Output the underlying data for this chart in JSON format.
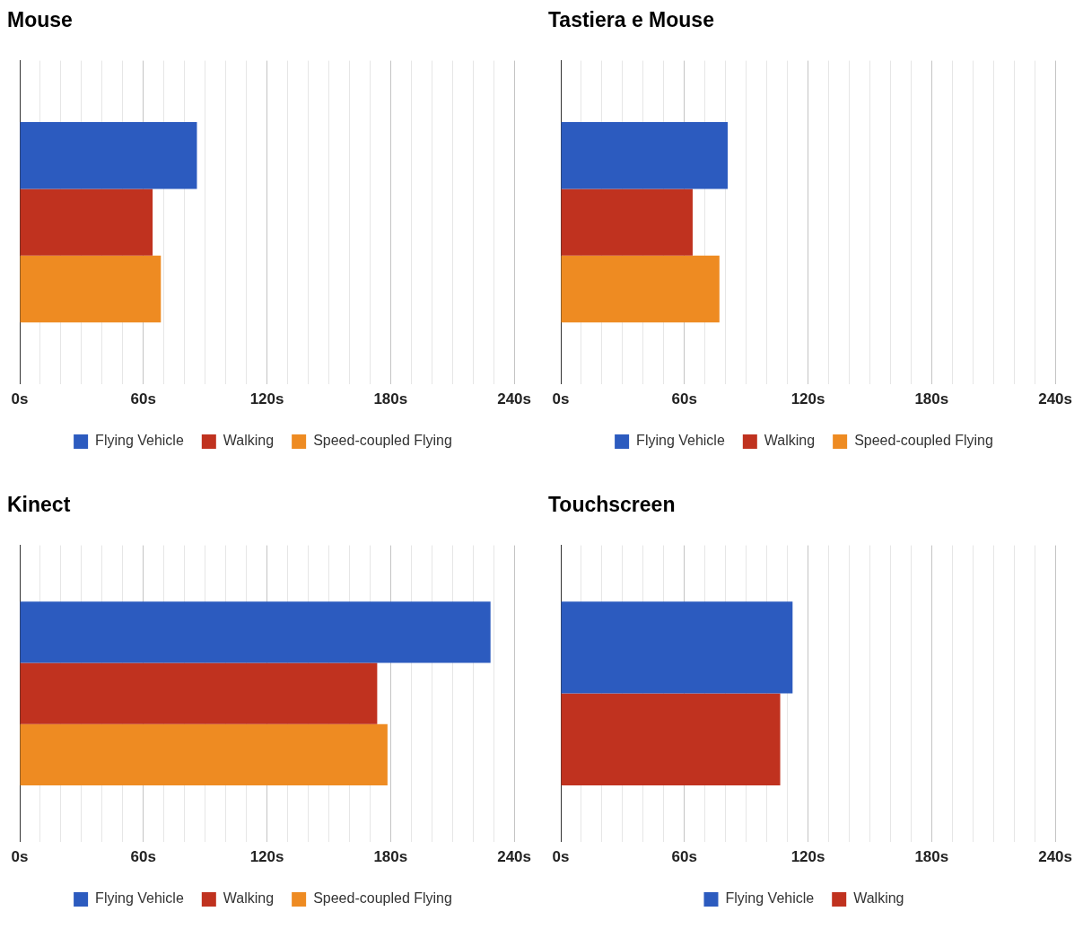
{
  "chart_data": [
    {
      "type": "bar",
      "orientation": "horizontal",
      "title": "Mouse",
      "categories": [
        null
      ],
      "series": [
        {
          "name": "Flying Vehicle",
          "color": "#2c5bbf",
          "values": [
            86
          ]
        },
        {
          "name": "Walking",
          "color": "#c0321f",
          "values": [
            64.5
          ]
        },
        {
          "name": "Speed-coupled Flying",
          "color": "#ee8b22",
          "values": [
            68.5
          ]
        }
      ],
      "xlim": [
        0,
        240
      ],
      "xticks": [
        {
          "value": 0,
          "label": "0s"
        },
        {
          "value": 10,
          "label": null
        },
        {
          "value": 20,
          "label": null
        },
        {
          "value": 30,
          "label": null
        },
        {
          "value": 40,
          "label": null
        },
        {
          "value": 50,
          "label": null
        },
        {
          "value": 60,
          "label": "60s"
        },
        {
          "value": 70,
          "label": null
        },
        {
          "value": 80,
          "label": null
        },
        {
          "value": 90,
          "label": null
        },
        {
          "value": 100,
          "label": null
        },
        {
          "value": 110,
          "label": null
        },
        {
          "value": 120,
          "label": "120s"
        },
        {
          "value": 130,
          "label": null
        },
        {
          "value": 140,
          "label": null
        },
        {
          "value": 150,
          "label": null
        },
        {
          "value": 160,
          "label": null
        },
        {
          "value": 170,
          "label": null
        },
        {
          "value": 180,
          "label": "180s"
        },
        {
          "value": 190,
          "label": null
        },
        {
          "value": 200,
          "label": null
        },
        {
          "value": 210,
          "label": null
        },
        {
          "value": 220,
          "label": null
        },
        {
          "value": 230,
          "label": null
        },
        {
          "value": 240,
          "label": "240s"
        }
      ],
      "grid": "x",
      "legend": "bottom"
    },
    {
      "type": "bar",
      "orientation": "horizontal",
      "title": "Tastiera e Mouse",
      "categories": [
        null
      ],
      "series": [
        {
          "name": "Flying Vehicle",
          "color": "#2c5bbf",
          "values": [
            81
          ]
        },
        {
          "name": "Walking",
          "color": "#c0321f",
          "values": [
            64
          ]
        },
        {
          "name": "Speed-coupled Flying",
          "color": "#ee8b22",
          "values": [
            77
          ]
        }
      ],
      "xlim": [
        0,
        240
      ],
      "xticks": [
        {
          "value": 0,
          "label": "0s"
        },
        {
          "value": 10,
          "label": null
        },
        {
          "value": 20,
          "label": null
        },
        {
          "value": 30,
          "label": null
        },
        {
          "value": 40,
          "label": null
        },
        {
          "value": 50,
          "label": null
        },
        {
          "value": 60,
          "label": "60s"
        },
        {
          "value": 70,
          "label": null
        },
        {
          "value": 80,
          "label": null
        },
        {
          "value": 90,
          "label": null
        },
        {
          "value": 100,
          "label": null
        },
        {
          "value": 110,
          "label": null
        },
        {
          "value": 120,
          "label": "120s"
        },
        {
          "value": 130,
          "label": null
        },
        {
          "value": 140,
          "label": null
        },
        {
          "value": 150,
          "label": null
        },
        {
          "value": 160,
          "label": null
        },
        {
          "value": 170,
          "label": null
        },
        {
          "value": 180,
          "label": "180s"
        },
        {
          "value": 190,
          "label": null
        },
        {
          "value": 200,
          "label": null
        },
        {
          "value": 210,
          "label": null
        },
        {
          "value": 220,
          "label": null
        },
        {
          "value": 230,
          "label": null
        },
        {
          "value": 240,
          "label": "240s"
        }
      ],
      "grid": "x",
      "legend": "bottom"
    },
    {
      "type": "bar",
      "orientation": "horizontal",
      "title": "Kinect",
      "categories": [
        null
      ],
      "series": [
        {
          "name": "Flying Vehicle",
          "color": "#2c5bbf",
          "values": [
            228.5
          ]
        },
        {
          "name": "Walking",
          "color": "#c0321f",
          "values": [
            173.5
          ]
        },
        {
          "name": "Speed-coupled Flying",
          "color": "#ee8b22",
          "values": [
            178.5
          ]
        }
      ],
      "xlim": [
        0,
        240
      ],
      "xticks": [
        {
          "value": 0,
          "label": "0s"
        },
        {
          "value": 10,
          "label": null
        },
        {
          "value": 20,
          "label": null
        },
        {
          "value": 30,
          "label": null
        },
        {
          "value": 40,
          "label": null
        },
        {
          "value": 50,
          "label": null
        },
        {
          "value": 60,
          "label": "60s"
        },
        {
          "value": 70,
          "label": null
        },
        {
          "value": 80,
          "label": null
        },
        {
          "value": 90,
          "label": null
        },
        {
          "value": 100,
          "label": null
        },
        {
          "value": 110,
          "label": null
        },
        {
          "value": 120,
          "label": "120s"
        },
        {
          "value": 130,
          "label": null
        },
        {
          "value": 140,
          "label": null
        },
        {
          "value": 150,
          "label": null
        },
        {
          "value": 160,
          "label": null
        },
        {
          "value": 170,
          "label": null
        },
        {
          "value": 180,
          "label": "180s"
        },
        {
          "value": 190,
          "label": null
        },
        {
          "value": 200,
          "label": null
        },
        {
          "value": 210,
          "label": null
        },
        {
          "value": 220,
          "label": null
        },
        {
          "value": 230,
          "label": null
        },
        {
          "value": 240,
          "label": "240s"
        }
      ],
      "grid": "x",
      "legend": "bottom"
    },
    {
      "type": "bar",
      "orientation": "horizontal",
      "title": "Touchscreen",
      "categories": [
        null
      ],
      "series": [
        {
          "name": "Flying Vehicle",
          "color": "#2c5bbf",
          "values": [
            112.5
          ]
        },
        {
          "name": "Walking",
          "color": "#c0321f",
          "values": [
            106.5
          ]
        }
      ],
      "xlim": [
        0,
        240
      ],
      "xticks": [
        {
          "value": 0,
          "label": "0s"
        },
        {
          "value": 10,
          "label": null
        },
        {
          "value": 20,
          "label": null
        },
        {
          "value": 30,
          "label": null
        },
        {
          "value": 40,
          "label": null
        },
        {
          "value": 50,
          "label": null
        },
        {
          "value": 60,
          "label": "60s"
        },
        {
          "value": 70,
          "label": null
        },
        {
          "value": 80,
          "label": null
        },
        {
          "value": 90,
          "label": null
        },
        {
          "value": 100,
          "label": null
        },
        {
          "value": 110,
          "label": null
        },
        {
          "value": 120,
          "label": "120s"
        },
        {
          "value": 130,
          "label": null
        },
        {
          "value": 140,
          "label": null
        },
        {
          "value": 150,
          "label": null
        },
        {
          "value": 160,
          "label": null
        },
        {
          "value": 170,
          "label": null
        },
        {
          "value": 180,
          "label": "180s"
        },
        {
          "value": 190,
          "label": null
        },
        {
          "value": 200,
          "label": null
        },
        {
          "value": 210,
          "label": null
        },
        {
          "value": 220,
          "label": null
        },
        {
          "value": 230,
          "label": null
        },
        {
          "value": 240,
          "label": "240s"
        }
      ],
      "grid": "x",
      "legend": "bottom"
    }
  ]
}
